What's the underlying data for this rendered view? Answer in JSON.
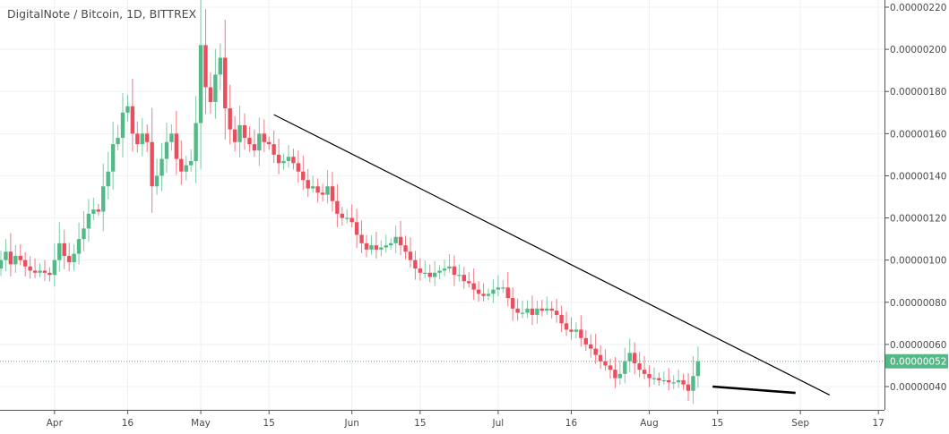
{
  "header": {
    "title": "DigitalNote / Bitcoin, 1D, BITTREX"
  },
  "colors": {
    "up": "#53b987",
    "down": "#eb4d5c",
    "grid": "#eef0f3",
    "axis": "#555555",
    "trendline": "#000000",
    "price_line": "#53b987"
  },
  "chart_data": {
    "type": "candlestick",
    "title": "DigitalNote / Bitcoin, 1D, BITTREX",
    "x_start": "2018-03-21",
    "x_ticks": [
      {
        "date": "2018-04-01",
        "label": "Apr"
      },
      {
        "date": "2018-04-16",
        "label": "16"
      },
      {
        "date": "2018-05-01",
        "label": "May"
      },
      {
        "date": "2018-05-15",
        "label": "15"
      },
      {
        "date": "2018-06-01",
        "label": "Jun"
      },
      {
        "date": "2018-06-15",
        "label": "15"
      },
      {
        "date": "2018-07-01",
        "label": "Jul"
      },
      {
        "date": "2018-07-16",
        "label": "16"
      },
      {
        "date": "2018-08-01",
        "label": "Aug"
      },
      {
        "date": "2018-08-15",
        "label": "15"
      },
      {
        "date": "2018-09-01",
        "label": "Sep"
      },
      {
        "date": "2018-09-17",
        "label": "17"
      }
    ],
    "y_ticks": [
      "0.00000220",
      "0.00000200",
      "0.00000180",
      "0.00000160",
      "0.00000140",
      "0.00000120",
      "0.00000100",
      "0.00000080",
      "0.00000060",
      "0.00000040"
    ],
    "ylim": [
      3.1e-07,
      2.21e-06
    ],
    "last_price": "0.00000052",
    "last_price_value": 5.2e-07,
    "closes": [
      1e-06,
      1.04e-06,
      9.8e-07,
      1.02e-06,
      1e-06,
      9.7e-07,
      9.5e-07,
      9.4e-07,
      9.5e-07,
      9.4e-07,
      9.3e-07,
      1e-06,
      1.08e-06,
      1.02e-06,
      9.9e-07,
      1.03e-06,
      1.1e-06,
      1.15e-06,
      1.22e-06,
      1.24e-06,
      1.23e-06,
      1.35e-06,
      1.42e-06,
      1.55e-06,
      1.58e-06,
      1.7e-06,
      1.73e-06,
      1.6e-06,
      1.55e-06,
      1.6e-06,
      1.56e-06,
      1.35e-06,
      1.4e-06,
      1.48e-06,
      1.56e-06,
      1.6e-06,
      1.48e-06,
      1.42e-06,
      1.45e-06,
      1.47e-06,
      1.65e-06,
      2.02e-06,
      1.82e-06,
      1.75e-06,
      1.88e-06,
      1.96e-06,
      1.72e-06,
      1.62e-06,
      1.56e-06,
      1.64e-06,
      1.58e-06,
      1.55e-06,
      1.52e-06,
      1.6e-06,
      1.56e-06,
      1.55e-06,
      1.5e-06,
      1.46e-06,
      1.47e-06,
      1.49e-06,
      1.46e-06,
      1.42e-06,
      1.38e-06,
      1.34e-06,
      1.35e-06,
      1.32e-06,
      1.31e-06,
      1.35e-06,
      1.28e-06,
      1.22e-06,
      1.2e-06,
      1.2e-06,
      1.18e-06,
      1.12e-06,
      1.08e-06,
      1.05e-06,
      1.07e-06,
      1.05e-06,
      1.06e-06,
      1.07e-06,
      1.08e-06,
      1.11e-06,
      1.07e-06,
      1.04e-06,
      1e-06,
      9.6e-07,
      9.4e-07,
      9.4e-07,
      9.2e-07,
      9.4e-07,
      9.5e-07,
      9.6e-07,
      9.7e-07,
      9.3e-07,
      9.3e-07,
      9e-07,
      8.9e-07,
      8.6e-07,
      8.4e-07,
      8.3e-07,
      8.4e-07,
      8.6e-07,
      8.7e-07,
      8.7e-07,
      8.2e-07,
      7.7e-07,
      7.5e-07,
      7.5e-07,
      7.7e-07,
      7.4e-07,
      7.7e-07,
      7.6e-07,
      7.7e-07,
      7.6e-07,
      7.4e-07,
      7e-07,
      6.7e-07,
      6.6e-07,
      6.7e-07,
      6.3e-07,
      6e-07,
      5.8e-07,
      5.5e-07,
      5.2e-07,
      5e-07,
      4.8e-07,
      4.4e-07,
      4.6e-07,
      5.2e-07,
      5.6e-07,
      5.1e-07,
      4.8e-07,
      4.6e-07,
      4.4e-07,
      4.4e-07,
      4.3e-07,
      4.3e-07,
      4.2e-07,
      4.2e-07,
      4.3e-07,
      4.1e-07,
      3.8e-07,
      4.5e-07,
      5.2e-07
    ],
    "trendlines": [
      {
        "from": {
          "date": "2018-05-16",
          "value": 1.69e-06
        },
        "to": {
          "date": "2018-09-07",
          "value": 3.6e-07
        }
      },
      {
        "from": {
          "date": "2018-08-14",
          "value": 4e-07
        },
        "to": {
          "date": "2018-08-31",
          "value": 3.7e-07
        }
      }
    ]
  }
}
